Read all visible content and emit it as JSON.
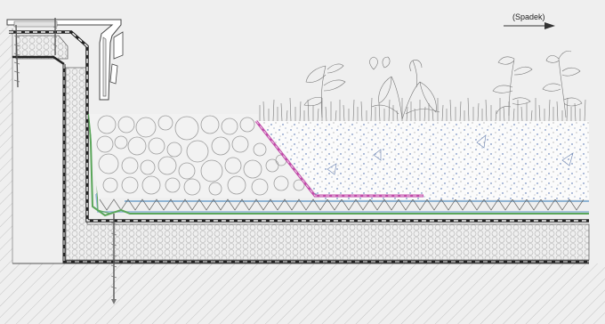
{
  "diagram": {
    "annotation": {
      "slope_label": "(Spadek)"
    },
    "colors": {
      "background": "#efefef",
      "hatch": "#c4c4c4",
      "line": "#444444",
      "membrane": "#222222",
      "drainage_blue": "#8fb4d4",
      "filter_green": "#5aa65a",
      "edge_magenta": "#c04aa8",
      "substrate_dots": "#3a5fa8"
    },
    "icons": {
      "slope_arrow": "arrow-right-icon",
      "anchor": "screw-anchor-icon"
    }
  }
}
